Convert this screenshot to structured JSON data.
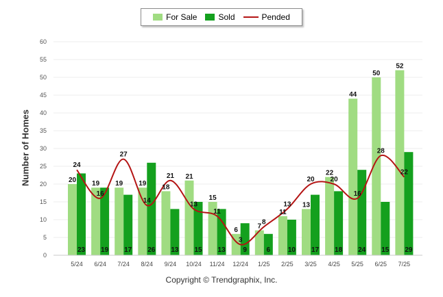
{
  "legend": {
    "for_sale": "For Sale",
    "sold": "Sold",
    "pended": "Pended"
  },
  "footer": {
    "copyright": "Copyright © Trendgraphix, Inc."
  },
  "colors": {
    "for_sale": "#a0dc82",
    "sold": "#14a01e",
    "pended": "#b41414",
    "grid": "#ececec"
  },
  "chart_data": {
    "type": "bar",
    "ylabel": "Number of Homes",
    "ylim": [
      0,
      60
    ],
    "yticks": [
      0,
      5,
      10,
      15,
      20,
      25,
      30,
      35,
      40,
      45,
      50,
      55,
      60
    ],
    "grid": true,
    "legend_position": "top-center",
    "categories": [
      "5/24",
      "6/24",
      "7/24",
      "8/24",
      "9/24",
      "10/24",
      "11/24",
      "12/24",
      "1/25",
      "2/25",
      "3/25",
      "4/25",
      "5/25",
      "6/25",
      "7/25"
    ],
    "series": [
      {
        "name": "For Sale",
        "type": "bar",
        "values": [
          20,
          19,
          19,
          19,
          18,
          21,
          15,
          6,
          7,
          11,
          13,
          22,
          44,
          50,
          52
        ]
      },
      {
        "name": "Sold",
        "type": "bar",
        "values": [
          23,
          19,
          17,
          26,
          13,
          15,
          13,
          9,
          6,
          10,
          17,
          18,
          24,
          15,
          29
        ]
      },
      {
        "name": "Pended",
        "type": "line",
        "values": [
          24,
          16,
          27,
          14,
          21,
          13,
          11,
          3,
          8,
          13,
          20,
          20,
          16,
          28,
          22
        ]
      }
    ]
  }
}
